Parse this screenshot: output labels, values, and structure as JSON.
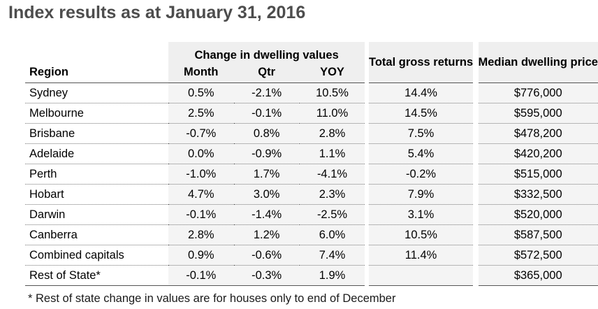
{
  "title": "Index results as at January 31, 2016",
  "table": {
    "group_header": "Change in dwelling values",
    "headers": {
      "region": "Region",
      "month": "Month",
      "qtr": "Qtr",
      "yoy": "YOY",
      "total_gross_returns": "Total gross returns",
      "median_dwelling_price": "Median dwelling price"
    },
    "rows": [
      {
        "region": "Sydney",
        "month": "0.5%",
        "qtr": "-2.1%",
        "yoy": "10.5%",
        "total": "14.4%",
        "median": "$776,000"
      },
      {
        "region": "Melbourne",
        "month": "2.5%",
        "qtr": "-0.1%",
        "yoy": "11.0%",
        "total": "14.5%",
        "median": "$595,000"
      },
      {
        "region": "Brisbane",
        "month": "-0.7%",
        "qtr": "0.8%",
        "yoy": "2.8%",
        "total": "7.5%",
        "median": "$478,200"
      },
      {
        "region": "Adelaide",
        "month": "0.0%",
        "qtr": "-0.9%",
        "yoy": "1.1%",
        "total": "5.4%",
        "median": "$420,200"
      },
      {
        "region": "Perth",
        "month": "-1.0%",
        "qtr": "1.7%",
        "yoy": "-4.1%",
        "total": "-0.2%",
        "median": "$515,000"
      },
      {
        "region": "Hobart",
        "month": "4.7%",
        "qtr": "3.0%",
        "yoy": "2.3%",
        "total": "7.9%",
        "median": "$332,500"
      },
      {
        "region": "Darwin",
        "month": "-0.1%",
        "qtr": "-1.4%",
        "yoy": "-2.5%",
        "total": "3.1%",
        "median": "$520,000"
      },
      {
        "region": "Canberra",
        "month": "2.8%",
        "qtr": "1.2%",
        "yoy": "6.0%",
        "total": "10.5%",
        "median": "$587,500"
      },
      {
        "region": "Combined capitals",
        "month": "0.9%",
        "qtr": "-0.6%",
        "yoy": "7.4%",
        "total": "11.4%",
        "median": "$572,500"
      },
      {
        "region": "Rest of State*",
        "month": "-0.1%",
        "qtr": "-0.3%",
        "yoy": "1.9%",
        "total": "",
        "median": "$365,000"
      }
    ]
  },
  "footnote": "* Rest of state change in values are for houses only to end of December"
}
